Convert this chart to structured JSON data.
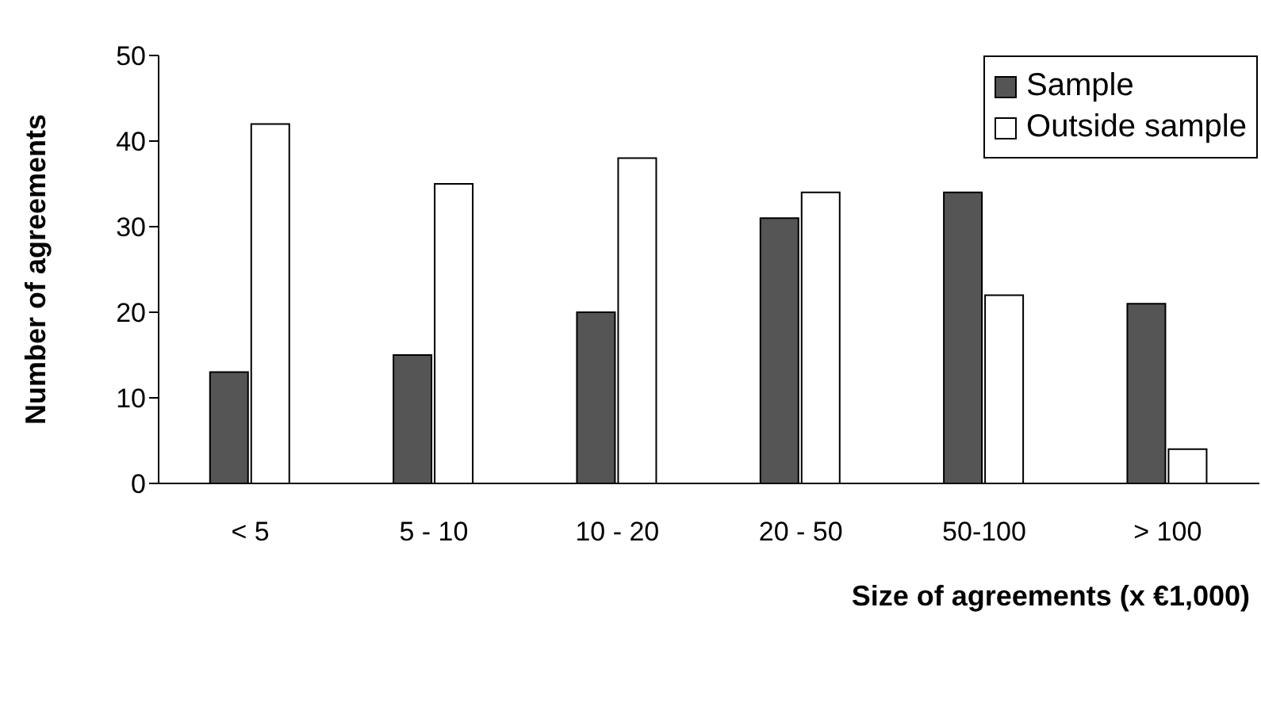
{
  "chart_data": {
    "type": "bar",
    "xlabel": "Size of agreements (x €1,000)",
    "ylabel": "Number of agreements",
    "categories": [
      "< 5",
      "5 - 10",
      "10 - 20",
      "20 - 50",
      "50-100",
      "> 100"
    ],
    "series": [
      {
        "name": "Sample",
        "color": "#555555",
        "values": [
          13,
          15,
          20,
          31,
          34,
          21
        ]
      },
      {
        "name": "Outside sample",
        "color": "#ffffff",
        "values": [
          42,
          35,
          38,
          34,
          22,
          4
        ]
      }
    ],
    "ylim": [
      0,
      50
    ],
    "yticks": [
      0,
      10,
      20,
      30,
      40,
      50
    ],
    "grid": false,
    "legend": "top right"
  }
}
